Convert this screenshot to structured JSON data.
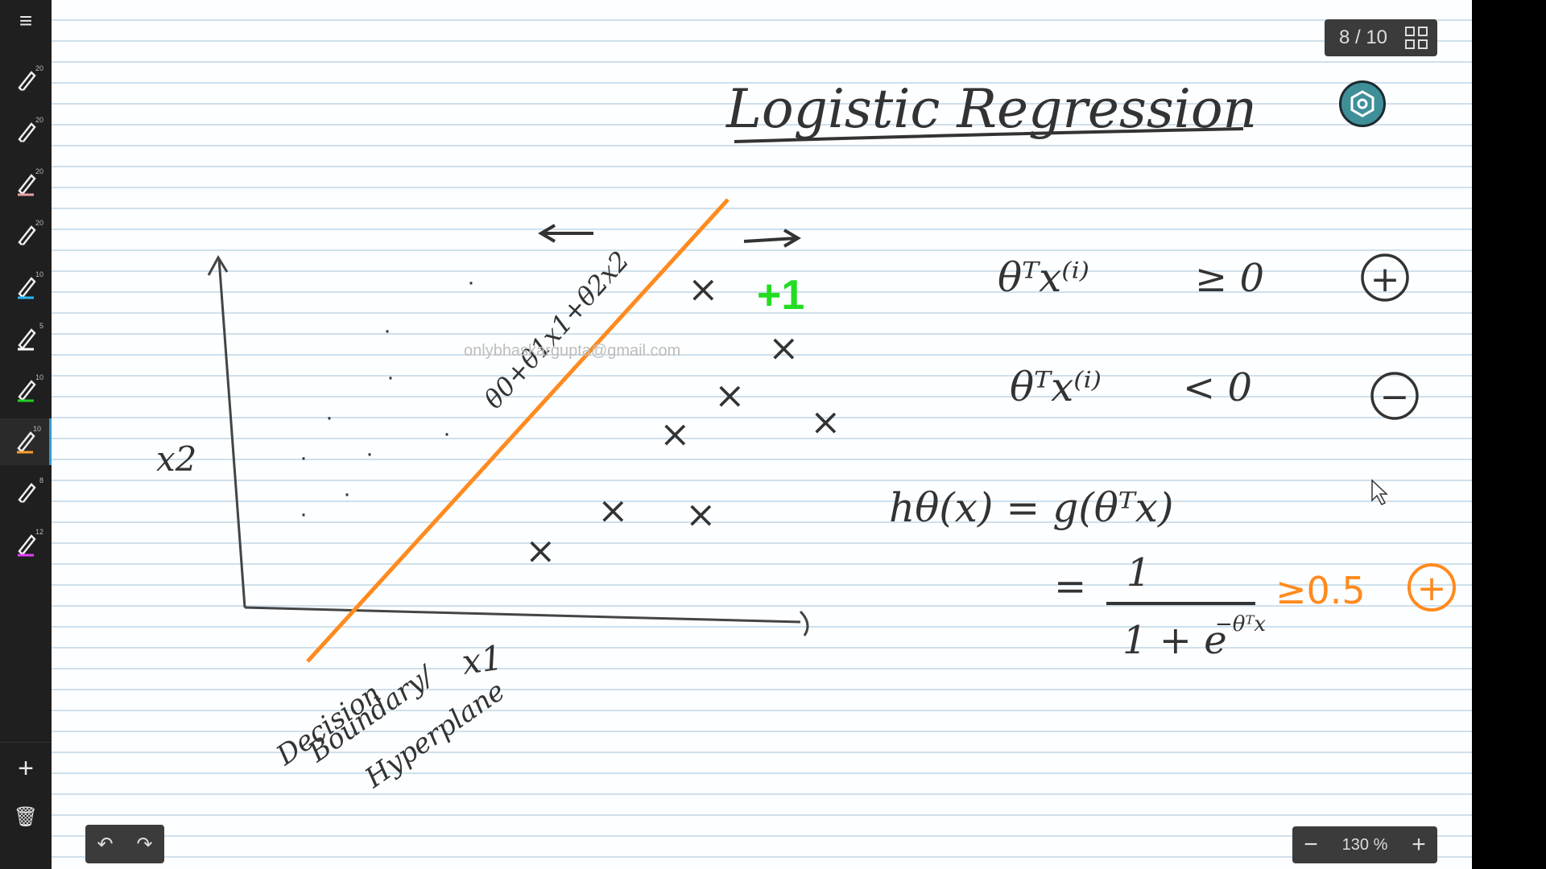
{
  "toolbar": {
    "menu_icon": "hamburger-menu-icon",
    "pens": [
      {
        "size": "20",
        "color": "#222222"
      },
      {
        "size": "20",
        "color": "#222222"
      },
      {
        "size": "20",
        "color": "#e8a0a0"
      },
      {
        "size": "20",
        "color": "#222222"
      },
      {
        "size": "10",
        "color": "#29b6f6"
      },
      {
        "size": "5",
        "color": "#ffffff"
      },
      {
        "size": "10",
        "color": "#22cc22"
      },
      {
        "size": "10",
        "color": "#ff9c2a"
      },
      {
        "size": "8",
        "color": "#222222"
      },
      {
        "size": "12",
        "color": "#e040fb"
      }
    ],
    "add_label": "+",
    "trash_icon": "trash-icon"
  },
  "page_counter": {
    "current": "8",
    "total": "10",
    "text": "8 / 10"
  },
  "zoom": {
    "value": "130 %",
    "minus": "−",
    "plus": "+"
  },
  "undo": {
    "undo_symbol": "↶",
    "redo_symbol": "↷"
  },
  "watermark": "onlybhaskargupta@gmail.com",
  "notes": {
    "title": "Logistic Regression",
    "y_axis": "x2",
    "x_axis": "x1",
    "boundary_eq": "θ0+θ1x1+θ2x2",
    "boundary_caption_1": "Decision",
    "boundary_caption_2": "Boundary/",
    "boundary_caption_3": "Hyperplane",
    "plus_one": "+1",
    "rule1": "θᵀx⁽ⁱ⁾",
    "rule1_op": "≥ 0",
    "rule2": "θᵀx⁽ⁱ⁾",
    "rule2_op": "< 0",
    "hypothesis": "hθ(x) = g(θᵀx)",
    "eq_sign": "=",
    "fraction_num": "1",
    "fraction_den": "1 + e",
    "fraction_exp": "−θᵀx",
    "threshold": "≥0.5",
    "positive_sym": "+",
    "negative_sym": "−",
    "cross": "×",
    "dot": "·"
  },
  "colors": {
    "orange": "#ff8a1e",
    "green": "#22dd22",
    "ink": "#333333",
    "teal": "#3f8f99"
  }
}
